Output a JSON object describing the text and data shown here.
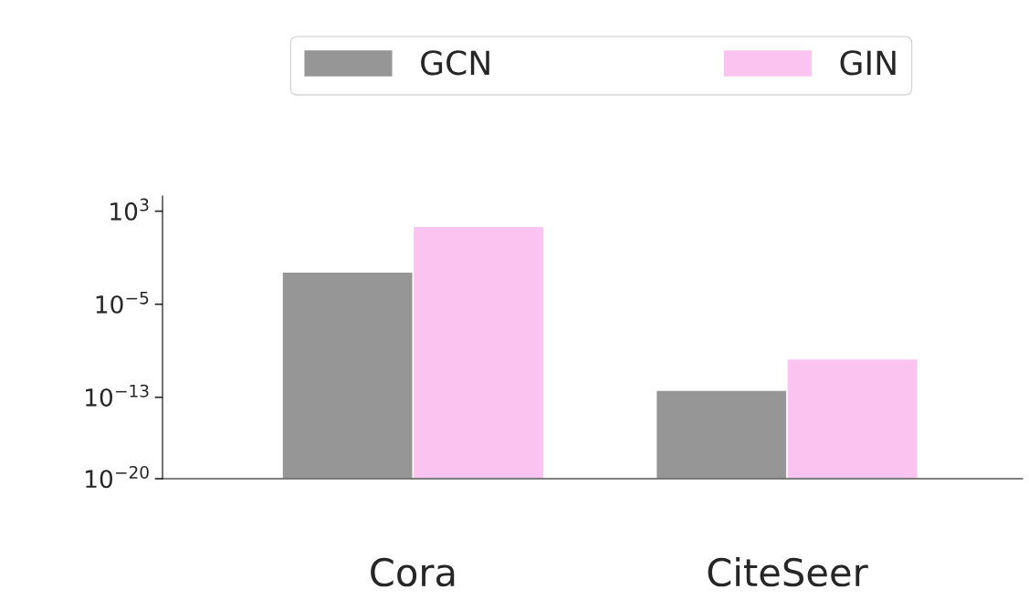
{
  "chart_data": {
    "type": "bar",
    "categories": [
      "Cora",
      "CiteSeer"
    ],
    "series": [
      {
        "name": "GCN",
        "color": "#969696",
        "values": [
          0.006,
          4e-13
        ]
      },
      {
        "name": "GIN",
        "color": "#fbc4f0",
        "values": [
          50,
          2e-10
        ]
      }
    ],
    "log": true,
    "ylim": [
      1e-20,
      20000.0
    ],
    "yticks": [
      {
        "value": 1000.0,
        "label": "10$^{3}$"
      },
      {
        "value": 1e-05,
        "label": "10$^{−5}$"
      },
      {
        "value": 1e-13,
        "label": "10$^{−13}$"
      },
      {
        "value": 1e-20,
        "label": "10$^{−20}$"
      }
    ],
    "legend": "top",
    "grid": false
  }
}
